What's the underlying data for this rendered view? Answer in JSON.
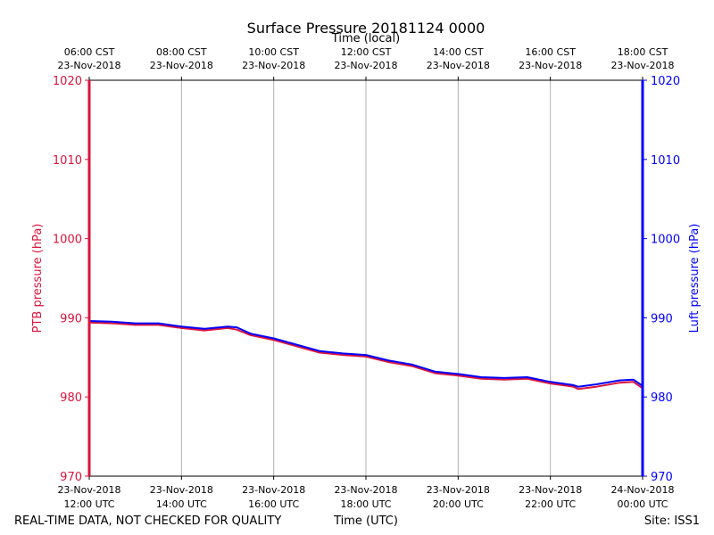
{
  "chart_data": {
    "type": "line",
    "title": "Surface Pressure 20181124 0000",
    "top_xlabel": "Time (local)",
    "xlabel": "Time (UTC)",
    "ylabel_left": "PTB pressure (hPa)",
    "ylabel_right": "Luft pressure (hPa)",
    "ylim": [
      970,
      1020
    ],
    "yticks": [
      970,
      980,
      990,
      1000,
      1010,
      1020
    ],
    "xlim_hours_utc": [
      12,
      24
    ],
    "grid": "vertical",
    "x_bottom_ticks": [
      {
        "hour": 12,
        "line1": "23-Nov-2018",
        "line2": "12:00 UTC"
      },
      {
        "hour": 14,
        "line1": "23-Nov-2018",
        "line2": "14:00 UTC"
      },
      {
        "hour": 16,
        "line1": "23-Nov-2018",
        "line2": "16:00 UTC"
      },
      {
        "hour": 18,
        "line1": "23-Nov-2018",
        "line2": "18:00 UTC"
      },
      {
        "hour": 20,
        "line1": "23-Nov-2018",
        "line2": "20:00 UTC"
      },
      {
        "hour": 22,
        "line1": "23-Nov-2018",
        "line2": "22:00 UTC"
      },
      {
        "hour": 24,
        "line1": "24-Nov-2018",
        "line2": "00:00 UTC"
      }
    ],
    "x_top_ticks": [
      {
        "hour": 12,
        "line1": "06:00 CST",
        "line2": "23-Nov-2018"
      },
      {
        "hour": 14,
        "line1": "08:00 CST",
        "line2": "23-Nov-2018"
      },
      {
        "hour": 16,
        "line1": "10:00 CST",
        "line2": "23-Nov-2018"
      },
      {
        "hour": 18,
        "line1": "12:00 CST",
        "line2": "23-Nov-2018"
      },
      {
        "hour": 20,
        "line1": "14:00 CST",
        "line2": "23-Nov-2018"
      },
      {
        "hour": 22,
        "line1": "16:00 CST",
        "line2": "23-Nov-2018"
      },
      {
        "hour": 24,
        "line1": "18:00 CST",
        "line2": "23-Nov-2018"
      }
    ],
    "series": [
      {
        "name": "PTB pressure",
        "axis": "left",
        "color": "#dc143c",
        "x": [
          12.0,
          12.5,
          13.0,
          13.5,
          14.0,
          14.5,
          15.0,
          15.2,
          15.5,
          16.0,
          16.5,
          17.0,
          17.5,
          18.0,
          18.5,
          19.0,
          19.5,
          20.0,
          20.5,
          21.0,
          21.5,
          22.0,
          22.5,
          22.6,
          23.0,
          23.5,
          23.8,
          24.0
        ],
        "values": [
          989.4,
          989.3,
          989.1,
          989.1,
          988.7,
          988.4,
          988.7,
          988.5,
          987.8,
          987.2,
          986.4,
          985.6,
          985.3,
          985.1,
          984.4,
          983.9,
          983.0,
          982.7,
          982.3,
          982.2,
          982.3,
          981.7,
          981.3,
          981.0,
          981.3,
          981.8,
          981.9,
          981.1
        ]
      },
      {
        "name": "Luft pressure",
        "axis": "right",
        "color": "#0000ff",
        "x": [
          12.0,
          12.5,
          13.0,
          13.5,
          14.0,
          14.5,
          15.0,
          15.2,
          15.5,
          16.0,
          16.5,
          17.0,
          17.5,
          18.0,
          18.5,
          19.0,
          19.5,
          20.0,
          20.5,
          21.0,
          21.5,
          22.0,
          22.5,
          22.6,
          23.0,
          23.5,
          23.8,
          24.0
        ],
        "values": [
          989.6,
          989.5,
          989.3,
          989.3,
          988.9,
          988.6,
          988.9,
          988.8,
          988.0,
          987.4,
          986.6,
          985.8,
          985.5,
          985.3,
          984.6,
          984.1,
          983.2,
          982.9,
          982.5,
          982.4,
          982.5,
          981.9,
          981.5,
          981.3,
          981.6,
          982.1,
          982.2,
          981.4
        ]
      }
    ]
  },
  "footer": {
    "left": "REAL-TIME DATA, NOT CHECKED FOR QUALITY",
    "center": "Time (UTC)",
    "right": "Site: ISS1"
  },
  "colors": {
    "left_axis": "#dc143c",
    "right_axis": "#0000ff",
    "grid": "#b0b0b0"
  }
}
